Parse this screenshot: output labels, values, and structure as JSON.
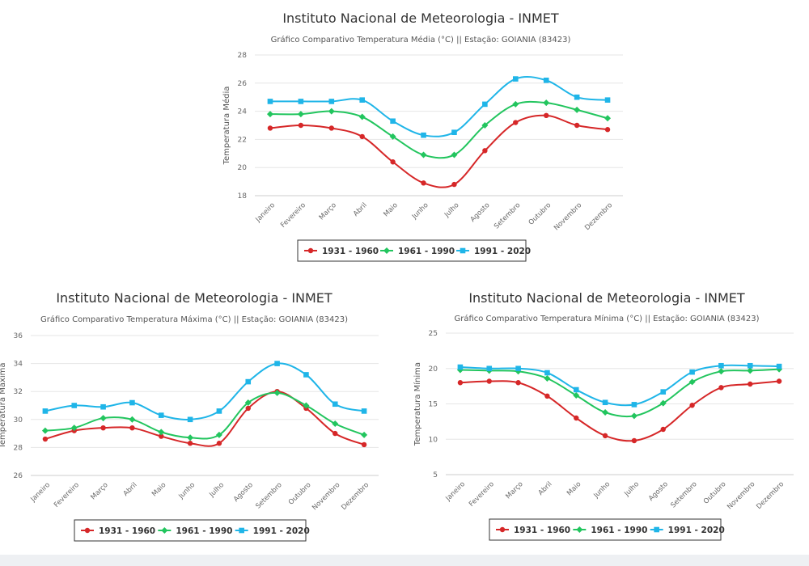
{
  "chart_data": [
    {
      "type": "line",
      "title": "Instituto Nacional de Meteorologia - INMET",
      "subtitle": "Gráfico Comparativo Temperatura Média (°C) || Estação: GOIANIA (83423)",
      "ylabel": "Temperatura Média",
      "xlabel": "",
      "ylim": [
        18,
        28
      ],
      "yticks": [
        18,
        20,
        22,
        24,
        26,
        28
      ],
      "grid": true,
      "legend": "bottom",
      "categories": [
        "Janeiro",
        "Fevereiro",
        "Março",
        "Abril",
        "Maio",
        "Junho",
        "Julho",
        "Agosto",
        "Setembro",
        "Outubro",
        "Novembro",
        "Dezembro"
      ],
      "series": [
        {
          "name": "1931 - 1960",
          "color": "#d62728",
          "values": [
            22.8,
            23.0,
            22.8,
            22.2,
            20.4,
            18.9,
            18.8,
            21.2,
            23.2,
            23.7,
            23.0,
            22.7
          ]
        },
        {
          "name": "1961 - 1990",
          "color": "#22c55e",
          "values": [
            23.8,
            23.8,
            24.0,
            23.6,
            22.2,
            20.9,
            20.9,
            23.0,
            24.5,
            24.6,
            24.1,
            23.5
          ]
        },
        {
          "name": "1991 - 2020",
          "color": "#1fb5e8",
          "values": [
            24.7,
            24.7,
            24.7,
            24.8,
            23.3,
            22.3,
            22.5,
            24.5,
            26.3,
            26.2,
            25.0,
            24.8
          ]
        }
      ]
    },
    {
      "type": "line",
      "title": "Instituto Nacional de Meteorologia - INMET",
      "subtitle": "Gráfico Comparativo Temperatura Máxima (°C) || Estação: GOIANIA (83423)",
      "ylabel": "Temperatura Máxima",
      "xlabel": "",
      "ylim": [
        26,
        36
      ],
      "yticks": [
        26,
        28,
        30,
        32,
        34,
        36
      ],
      "grid": true,
      "legend": "bottom",
      "categories": [
        "Janeiro",
        "Fevereiro",
        "Março",
        "Abril",
        "Maio",
        "Junho",
        "Julho",
        "Agosto",
        "Setembro",
        "Outubro",
        "Novembro",
        "Dezembro"
      ],
      "series": [
        {
          "name": "1931 - 1960",
          "color": "#d62728",
          "values": [
            28.6,
            29.2,
            29.4,
            29.4,
            28.8,
            28.3,
            28.3,
            30.8,
            32.0,
            30.8,
            29.0,
            28.2
          ]
        },
        {
          "name": "1961 - 1990",
          "color": "#22c55e",
          "values": [
            29.2,
            29.4,
            30.1,
            30.0,
            29.1,
            28.7,
            28.9,
            31.2,
            31.9,
            31.0,
            29.7,
            28.9
          ]
        },
        {
          "name": "1991 - 2020",
          "color": "#1fb5e8",
          "values": [
            30.6,
            31.0,
            30.9,
            31.2,
            30.3,
            30.0,
            30.6,
            32.7,
            34.0,
            33.2,
            31.1,
            30.6
          ]
        }
      ]
    },
    {
      "type": "line",
      "title": "Instituto Nacional de Meteorologia - INMET",
      "subtitle": "Gráfico Comparativo Temperatura Mínima (°C) || Estação: GOIANIA (83423)",
      "ylabel": "Temperatura Mínima",
      "xlabel": "",
      "ylim": [
        5,
        25
      ],
      "yticks": [
        5,
        10,
        15,
        20,
        25
      ],
      "grid": true,
      "legend": "bottom",
      "categories": [
        "Janeiro",
        "Fevereiro",
        "Março",
        "Abril",
        "Maio",
        "Junho",
        "Julho",
        "Agosto",
        "Setembro",
        "Outubro",
        "Novembro",
        "Dezembro"
      ],
      "series": [
        {
          "name": "1931 - 1960",
          "color": "#d62728",
          "values": [
            18.0,
            18.2,
            18.0,
            16.1,
            13.0,
            10.5,
            9.8,
            11.4,
            14.8,
            17.3,
            17.8,
            18.2
          ]
        },
        {
          "name": "1961 - 1990",
          "color": "#22c55e",
          "values": [
            19.8,
            19.7,
            19.6,
            18.6,
            16.2,
            13.8,
            13.3,
            15.1,
            18.1,
            19.6,
            19.7,
            19.9
          ]
        },
        {
          "name": "1991 - 2020",
          "color": "#1fb5e8",
          "values": [
            20.2,
            20.0,
            20.0,
            19.4,
            17.0,
            15.2,
            14.9,
            16.7,
            19.5,
            20.4,
            20.4,
            20.3
          ]
        }
      ]
    }
  ]
}
